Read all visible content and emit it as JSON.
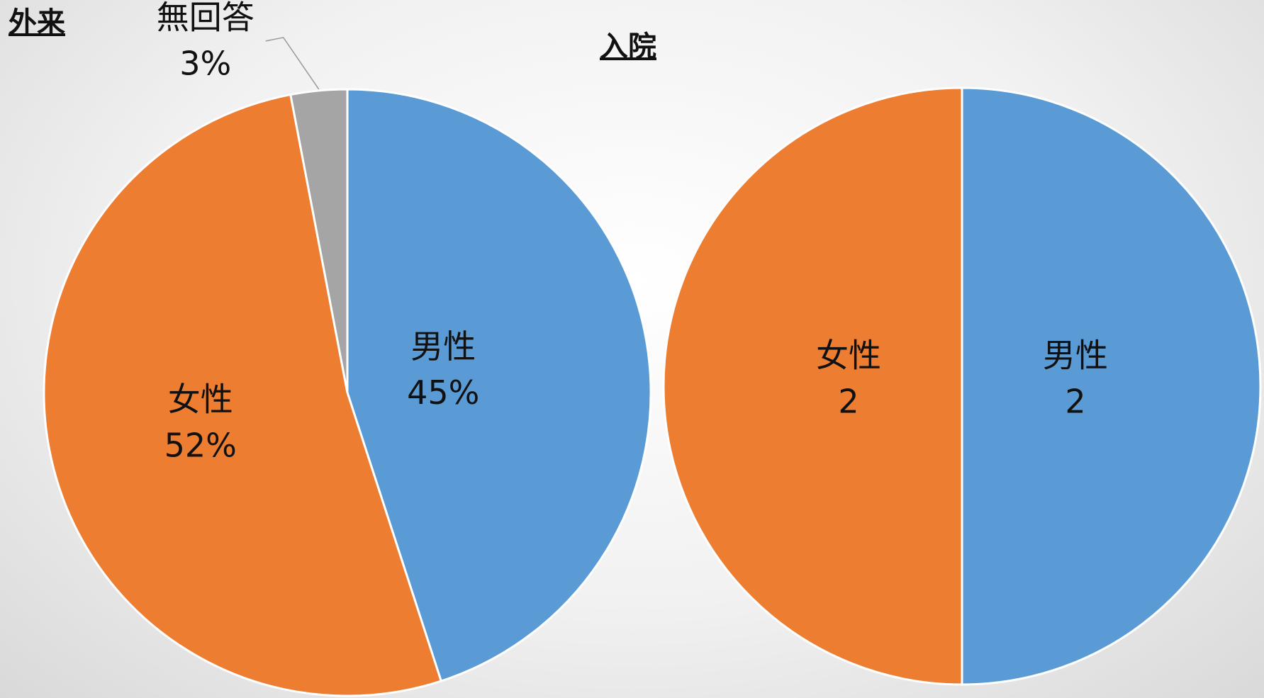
{
  "chart_data": [
    {
      "type": "pie",
      "title": "外来",
      "categories": [
        "男性",
        "女性",
        "無回答"
      ],
      "values": [
        45,
        52,
        3
      ],
      "value_labels": [
        "45%",
        "52%",
        "3%"
      ],
      "colors": [
        "#5b9bd5",
        "#ed7d31",
        "#a5a5a5"
      ]
    },
    {
      "type": "pie",
      "title": "入院",
      "categories": [
        "男性",
        "女性"
      ],
      "values": [
        2,
        2
      ],
      "colors": [
        "#5b9bd5",
        "#ed7d31"
      ]
    }
  ]
}
